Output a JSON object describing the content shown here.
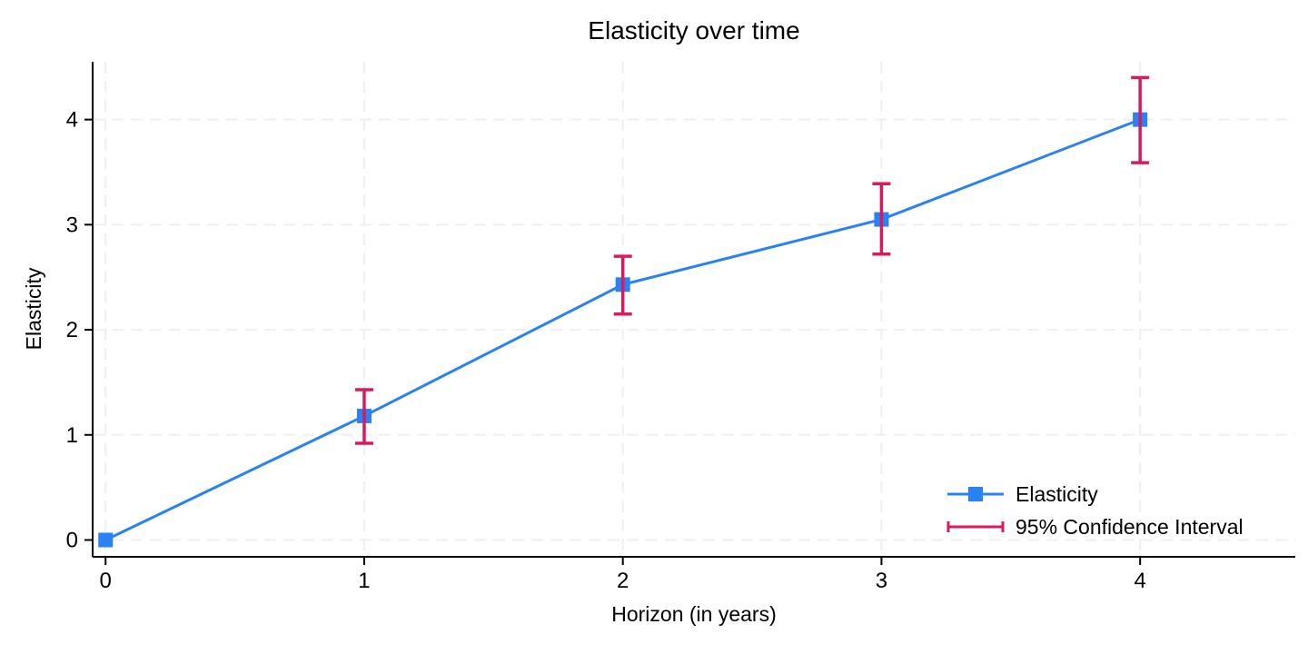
{
  "chart_data": {
    "type": "line",
    "title": "Elasticity over time",
    "xlabel": "Horizon (in years)",
    "ylabel": "Elasticity",
    "x": [
      0,
      1,
      2,
      3,
      4
    ],
    "series": [
      {
        "name": "Elasticity",
        "values": [
          0,
          1.18,
          2.43,
          3.05,
          4.0
        ],
        "color": "#2a82f2",
        "marker": "square"
      }
    ],
    "confidence_interval": {
      "name": "95% Confidence Interval",
      "color": "#d81b60",
      "low": [
        null,
        0.92,
        2.15,
        2.72,
        3.59
      ],
      "high": [
        null,
        1.43,
        2.7,
        3.39,
        4.4
      ]
    },
    "xticks": [
      0,
      1,
      2,
      3,
      4
    ],
    "yticks": [
      0,
      1,
      2,
      3,
      4
    ],
    "xlim": [
      -0.05,
      4.6
    ],
    "ylim": [
      -0.16,
      4.55
    ],
    "grid": {
      "show": true,
      "style": "dashed",
      "color": "#efefef"
    },
    "axis_color": "#000000",
    "background": "#ffffff",
    "legend_position": "bottom-right"
  }
}
